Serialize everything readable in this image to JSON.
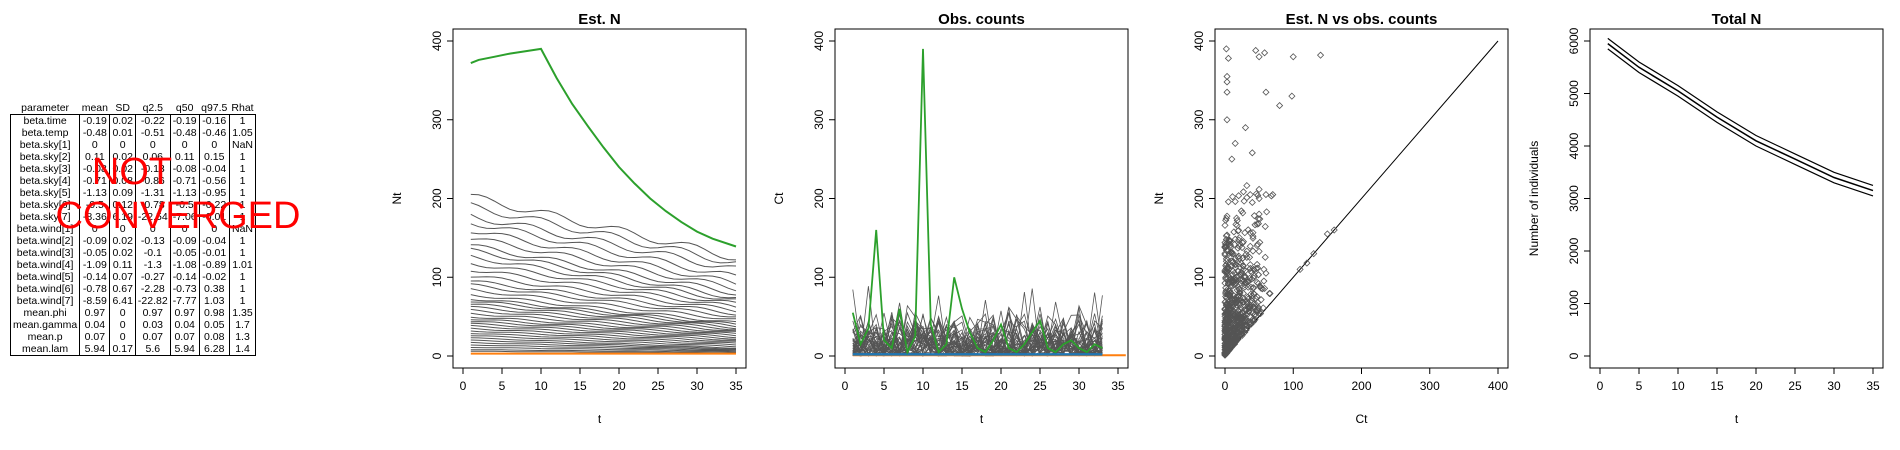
{
  "table": {
    "headers": [
      "parameter",
      "mean",
      "SD",
      "q2.5",
      "q50",
      "q97.5",
      "Rhat"
    ],
    "rows": [
      [
        "beta.time",
        "-0.19",
        "0.02",
        "-0.22",
        "-0.19",
        "-0.16",
        "1"
      ],
      [
        "beta.temp",
        "-0.48",
        "0.01",
        "-0.51",
        "-0.48",
        "-0.46",
        "1.05"
      ],
      [
        "beta.sky[1]",
        "0",
        "0",
        "0",
        "0",
        "0",
        "NaN"
      ],
      [
        "beta.sky[2]",
        "0.11",
        "0.02",
        "0.06",
        "0.11",
        "0.15",
        "1"
      ],
      [
        "beta.sky[3]",
        "-0.08",
        "0.02",
        "-0.13",
        "-0.08",
        "-0.04",
        "1"
      ],
      [
        "beta.sky[4]",
        "-0.71",
        "0.08",
        "-0.86",
        "-0.71",
        "-0.56",
        "1"
      ],
      [
        "beta.sky[5]",
        "-1.13",
        "0.09",
        "-1.31",
        "-1.13",
        "-0.95",
        "1"
      ],
      [
        "beta.sky[6]",
        "-0.5",
        "0.12",
        "-0.78",
        "-0.5",
        "-0.22",
        "1"
      ],
      [
        "beta.sky[7]",
        "-8.36",
        "6.19",
        "-22.54",
        "-7.06",
        "-0.01",
        "1"
      ],
      [
        "beta.wind[1]",
        "0",
        "0",
        "0",
        "0",
        "0",
        "NaN"
      ],
      [
        "beta.wind[2]",
        "-0.09",
        "0.02",
        "-0.13",
        "-0.09",
        "-0.04",
        "1"
      ],
      [
        "beta.wind[3]",
        "-0.05",
        "0.02",
        "-0.1",
        "-0.05",
        "-0.01",
        "1"
      ],
      [
        "beta.wind[4]",
        "-1.09",
        "0.11",
        "-1.3",
        "-1.08",
        "-0.89",
        "1.01"
      ],
      [
        "beta.wind[5]",
        "-0.14",
        "0.07",
        "-0.27",
        "-0.14",
        "-0.02",
        "1"
      ],
      [
        "beta.wind[6]",
        "-0.78",
        "0.67",
        "-2.28",
        "-0.73",
        "0.38",
        "1"
      ],
      [
        "beta.wind[7]",
        "-8.59",
        "6.41",
        "-22.82",
        "-7.77",
        "1.03",
        "1"
      ],
      [
        "mean.phi",
        "0.97",
        "0",
        "0.97",
        "0.97",
        "0.98",
        "1.35"
      ],
      [
        "mean.gamma",
        "0.04",
        "0",
        "0.03",
        "0.04",
        "0.05",
        "1.7"
      ],
      [
        "mean.p",
        "0.07",
        "0",
        "0.07",
        "0.07",
        "0.08",
        "1.3"
      ],
      [
        "mean.lam",
        "5.94",
        "0.17",
        "5.6",
        "5.94",
        "6.28",
        "1.4"
      ]
    ],
    "overlay_line1": "NOT",
    "overlay_line2": "CONVERGED",
    "overlay_color": "#ff0000"
  },
  "chart_data": [
    {
      "type": "line",
      "title": "Est. N",
      "xlabel": "t",
      "ylabel": "Nt",
      "xlim": [
        0,
        35
      ],
      "ylim": [
        0,
        400
      ],
      "xticks": [
        0,
        5,
        10,
        15,
        20,
        25,
        30,
        35
      ],
      "yticks": [
        0,
        100,
        200,
        300,
        400
      ],
      "grey_color": "#555555",
      "highlight_color": "#2ca02c",
      "baseline_color": "#ff7f0e",
      "baseline_value": 3,
      "highlight_series": {
        "x": [
          1,
          2,
          4,
          6,
          8,
          10,
          12,
          14,
          16,
          18,
          20,
          22,
          24,
          26,
          28,
          30,
          32,
          35
        ],
        "values": [
          372,
          376,
          380,
          384,
          387,
          390,
          353,
          320,
          292,
          265,
          240,
          219,
          200,
          184,
          170,
          158,
          149,
          139
        ]
      },
      "grey_series_start": [
        202,
        190,
        178,
        170,
        160,
        150,
        140,
        134,
        126,
        118,
        110,
        102,
        95,
        90,
        84,
        78,
        73,
        70,
        66,
        62,
        58,
        54,
        50,
        47,
        44,
        41,
        38,
        35,
        32,
        29,
        26,
        23,
        20,
        17,
        14,
        11,
        8,
        6
      ],
      "grey_series_end": [
        125,
        118,
        110,
        100,
        92,
        86,
        80,
        74,
        70,
        66,
        62,
        58,
        54,
        50,
        46,
        42,
        40,
        38,
        36,
        34,
        32,
        30,
        28,
        26,
        24,
        22,
        20,
        18,
        16,
        14,
        12,
        10,
        9,
        8,
        7,
        6,
        5,
        4
      ]
    },
    {
      "type": "line",
      "title": "Obs. counts",
      "xlabel": "t",
      "ylabel": "Ct",
      "xlim": [
        0,
        35
      ],
      "ylim": [
        0,
        400
      ],
      "xticks": [
        0,
        5,
        10,
        15,
        20,
        25,
        30,
        35
      ],
      "yticks": [
        0,
        100,
        200,
        300,
        400
      ],
      "grey_color": "#555555",
      "highlight_color": "#2ca02c",
      "blue_color": "#1f77b4",
      "orange_color": "#ff7f0e",
      "highlight_series": {
        "x": [
          1,
          2,
          3,
          4,
          5,
          6,
          7,
          8,
          9,
          10,
          11,
          12,
          13,
          14,
          15,
          16,
          17,
          18,
          19,
          20,
          21,
          22,
          23,
          24,
          25,
          26,
          27,
          28,
          29,
          30,
          31,
          32,
          33
        ],
        "values": [
          55,
          15,
          35,
          160,
          20,
          10,
          60,
          5,
          25,
          390,
          40,
          5,
          15,
          100,
          60,
          30,
          10,
          5,
          20,
          40,
          10,
          5,
          15,
          30,
          45,
          10,
          5,
          15,
          20,
          10,
          5,
          15,
          10
        ]
      },
      "blue_series": {
        "x": [
          1,
          33
        ],
        "values": [
          2,
          2
        ]
      },
      "orange_series": {
        "x": [
          1,
          36
        ],
        "values": [
          1,
          1
        ]
      }
    },
    {
      "type": "scatter",
      "title": "Est. N vs obs. counts",
      "xlabel": "Ct",
      "ylabel": "Nt",
      "xlim": [
        0,
        400
      ],
      "ylim": [
        0,
        400
      ],
      "xticks": [
        0,
        100,
        200,
        300,
        400
      ],
      "yticks": [
        0,
        100,
        200,
        300,
        400
      ],
      "point_color": "#555555",
      "outliers": [
        {
          "x": 2,
          "y": 390
        },
        {
          "x": 5,
          "y": 378
        },
        {
          "x": 45,
          "y": 388
        },
        {
          "x": 50,
          "y": 380
        },
        {
          "x": 58,
          "y": 385
        },
        {
          "x": 100,
          "y": 380
        },
        {
          "x": 140,
          "y": 382
        },
        {
          "x": 3,
          "y": 355
        },
        {
          "x": 3,
          "y": 348
        },
        {
          "x": 3,
          "y": 335
        },
        {
          "x": 60,
          "y": 335
        },
        {
          "x": 80,
          "y": 318
        },
        {
          "x": 98,
          "y": 330
        },
        {
          "x": 3,
          "y": 300
        },
        {
          "x": 30,
          "y": 290
        },
        {
          "x": 15,
          "y": 270
        },
        {
          "x": 40,
          "y": 258
        },
        {
          "x": 10,
          "y": 250
        },
        {
          "x": 160,
          "y": 160
        },
        {
          "x": 150,
          "y": 155
        },
        {
          "x": 130,
          "y": 130
        },
        {
          "x": 120,
          "y": 118
        },
        {
          "x": 110,
          "y": 110
        },
        {
          "x": 70,
          "y": 205
        },
        {
          "x": 60,
          "y": 205
        },
        {
          "x": 50,
          "y": 200
        },
        {
          "x": 40,
          "y": 195
        }
      ],
      "cloud_seed": 7,
      "cloud_count": 650
    },
    {
      "type": "line",
      "title": "Total N",
      "xlabel": "t",
      "ylabel": "Number of individuals",
      "xlim": [
        0,
        35
      ],
      "ylim": [
        0,
        6000
      ],
      "xticks": [
        0,
        5,
        10,
        15,
        20,
        25,
        30,
        35
      ],
      "yticks": [
        0,
        1000,
        2000,
        3000,
        4000,
        5000,
        6000
      ],
      "line_color": "#000000",
      "series": [
        {
          "x": [
            1,
            5,
            10,
            15,
            20,
            25,
            30,
            35
          ],
          "values": [
            6050,
            5600,
            5150,
            4650,
            4200,
            3850,
            3500,
            3250
          ]
        },
        {
          "x": [
            1,
            5,
            10,
            15,
            20,
            25,
            30,
            35
          ],
          "values": [
            5950,
            5500,
            5050,
            4550,
            4100,
            3750,
            3400,
            3150
          ]
        },
        {
          "x": [
            1,
            5,
            10,
            15,
            20,
            25,
            30,
            35
          ],
          "values": [
            5850,
            5400,
            4950,
            4450,
            4000,
            3650,
            3300,
            3050
          ]
        }
      ]
    }
  ]
}
